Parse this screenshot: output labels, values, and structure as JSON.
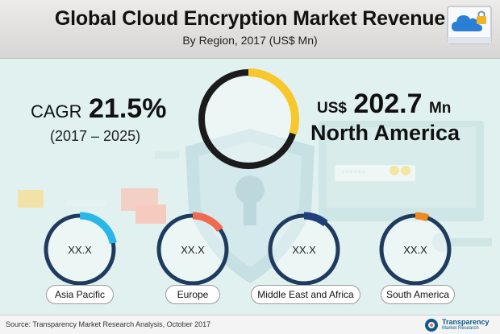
{
  "chart_data": {
    "type": "donut",
    "title": "Global Cloud Encryption Market Revenue",
    "subtitle": "By Region, 2017 (US$ Mn)",
    "cagr": {
      "label": "CAGR",
      "value": "21.5%",
      "period": "(2017 – 2025)"
    },
    "highlight": {
      "currency": "US$",
      "value": "202.7",
      "value_number": 202.7,
      "unit": "Mn",
      "region": "North America",
      "share_fraction": 0.3,
      "color": "#f7c72c"
    },
    "regions": [
      {
        "name": "Asia Pacific",
        "value": "XX.X",
        "share_fraction": 0.22,
        "color": "#29b6e8"
      },
      {
        "name": "Europe",
        "value": "XX.X",
        "share_fraction": 0.15,
        "color": "#f06a52"
      },
      {
        "name": "Middle East and Africa",
        "value": "XX.X",
        "share_fraction": 0.11,
        "color": "#1f3f7a"
      },
      {
        "name": "South America",
        "value": "XX.X",
        "share_fraction": 0.06,
        "color": "#f08a1c"
      }
    ]
  },
  "footer": {
    "source": "Source: Transparency Market Research Analysis, October 2017",
    "logo_name": "Transparency",
    "logo_sub": "Market Research"
  }
}
